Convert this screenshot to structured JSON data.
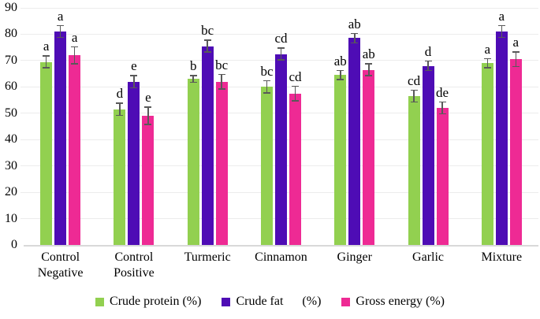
{
  "chart_data": {
    "type": "bar",
    "title": "",
    "categories": [
      "Control\nNegative",
      "Control\nPositive",
      "Turmeric",
      "Cinnamon",
      "Ginger",
      "Garlic",
      "Mixture"
    ],
    "series": [
      {
        "name": "Crude protein (%)",
        "legend_label": "Crude protein (%)",
        "color": "#92d050",
        "values": [
          69.5,
          51.5,
          63,
          60,
          64.5,
          56.5,
          69
        ],
        "errors": [
          2.5,
          2.5,
          1.5,
          2.5,
          2,
          2.5,
          2
        ],
        "letters": [
          "a",
          "d",
          "b",
          "bc",
          "ab",
          "cd",
          "a"
        ]
      },
      {
        "name": "Crude fat (%)",
        "legend_label": "Crude fat      (%)",
        "color": "#4e0cb5",
        "values": [
          81,
          62,
          75.5,
          72.5,
          78.5,
          68,
          81
        ],
        "errors": [
          2.5,
          2.5,
          2.5,
          2.5,
          2,
          2,
          2.5
        ],
        "letters": [
          "a",
          "e",
          "bc",
          "cd",
          "ab",
          "d",
          "a"
        ]
      },
      {
        "name": "Gross energy (%)",
        "legend_label": "Gross energy (%)",
        "color": "#ee2a94",
        "values": [
          72,
          49,
          62,
          57.5,
          66.5,
          52,
          70.5
        ],
        "errors": [
          3.5,
          3.5,
          3,
          3,
          2.5,
          2.5,
          3
        ],
        "letters": [
          "a",
          "e",
          "bc",
          "cd",
          "ab",
          "de",
          "a"
        ]
      }
    ],
    "ylim": [
      0,
      90
    ],
    "ytick_step": 10,
    "yticks": [
      "0",
      "10",
      "20",
      "30",
      "40",
      "50",
      "60",
      "70",
      "80",
      "90"
    ],
    "grid": true,
    "legend_position": "bottom",
    "colors": {
      "grid": "#ececec",
      "baseline": "#d9d9d9",
      "error": "#595959",
      "text": "#000000"
    }
  }
}
